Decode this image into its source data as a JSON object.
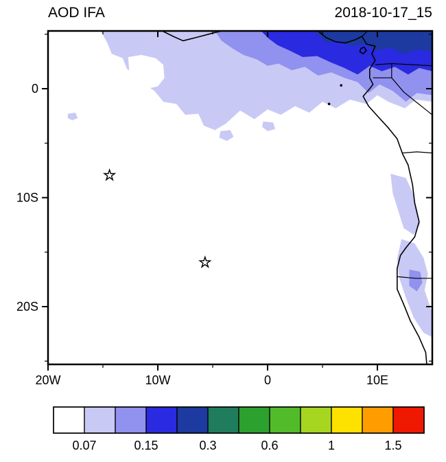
{
  "header": {
    "title": "AOD IFA",
    "date": "2018-10-17_15"
  },
  "chart_data": {
    "type": "heatmap",
    "title": "AOD IFA",
    "timestamp": "2018-10-17_15",
    "projection": {
      "lon_min": -20,
      "lon_max": 15,
      "lat_min": -25.3,
      "lat_max": 5.3
    },
    "axes": {
      "x_ticks": [
        {
          "label": "20W",
          "lon": -20
        },
        {
          "label": "10W",
          "lon": -10
        },
        {
          "label": "0",
          "lon": 0
        },
        {
          "label": "10E",
          "lon": 10
        }
      ],
      "y_ticks": [
        {
          "label": "0",
          "lat": 0
        },
        {
          "label": "10S",
          "lat": -10
        },
        {
          "label": "20S",
          "lat": -20
        }
      ],
      "x_minor_ticks": [
        -15,
        -5,
        5
      ],
      "y_minor_ticks": [
        5,
        -5,
        -15,
        -25
      ]
    },
    "colorbar": {
      "colors": [
        "#ffffff",
        "#c9c9f6",
        "#9191ef",
        "#2a2ae0",
        "#1c3aa0",
        "#1f7d5e",
        "#2da12d",
        "#52bb2a",
        "#a6d620",
        "#ffe100",
        "#ff9d00",
        "#ef1800"
      ],
      "labels": [
        {
          "text": "0.07",
          "boundary": 1
        },
        {
          "text": "0.15",
          "boundary": 3
        },
        {
          "text": "0.3",
          "boundary": 5
        },
        {
          "text": "0.6",
          "boundary": 7
        },
        {
          "text": "1",
          "boundary": 9
        },
        {
          "text": "1.5",
          "boundary": 11
        }
      ]
    },
    "markers": [
      {
        "lon": -14.4,
        "lat": -7.95
      },
      {
        "lon": -5.7,
        "lat": -15.95
      }
    ],
    "aod_regions": [
      {
        "name": "level-1",
        "color_index": 1,
        "polygons": [
          [
            [
              -15.2,
              5.3
            ],
            [
              15,
              5.3
            ],
            [
              15,
              -1.2
            ],
            [
              13.5,
              -1.0
            ],
            [
              12.5,
              -1.8
            ],
            [
              11,
              -1.2
            ],
            [
              10,
              -0.6
            ],
            [
              9,
              -1.4
            ],
            [
              7.5,
              -1.0
            ],
            [
              6.2,
              -1.8
            ],
            [
              5,
              -1.2
            ],
            [
              3.8,
              -2.2
            ],
            [
              2.5,
              -1.6
            ],
            [
              1.2,
              -2.4
            ],
            [
              0,
              -1.9
            ],
            [
              -1.2,
              -2.8
            ],
            [
              -2.5,
              -2.0
            ],
            [
              -3.8,
              -3.2
            ],
            [
              -4.8,
              -3.8
            ],
            [
              -5.8,
              -3.4
            ],
            [
              -6.3,
              -2.3
            ],
            [
              -7.5,
              -2.4
            ],
            [
              -8.3,
              -1.4
            ],
            [
              -9.5,
              -1.2
            ],
            [
              -10.3,
              -0.2
            ],
            [
              -11.2,
              0.4
            ],
            [
              -11.8,
              1.2
            ],
            [
              -12.8,
              1.8
            ],
            [
              -13.2,
              2.8
            ],
            [
              -14.2,
              3.2
            ],
            [
              -14.6,
              4.2
            ]
          ],
          [
            [
              -18.2,
              -2.3
            ],
            [
              -17.5,
              -2.2
            ],
            [
              -17.3,
              -2.7
            ],
            [
              -17.8,
              -2.9
            ],
            [
              -18.2,
              -2.7
            ]
          ],
          [
            [
              -4.3,
              -3.9
            ],
            [
              -3.4,
              -3.8
            ],
            [
              -3.1,
              -4.4
            ],
            [
              -3.7,
              -4.8
            ],
            [
              -4.4,
              -4.5
            ]
          ],
          [
            [
              -0.4,
              -3.0
            ],
            [
              0.5,
              -3.1
            ],
            [
              0.7,
              -3.7
            ],
            [
              0,
              -3.9
            ],
            [
              -0.5,
              -3.5
            ]
          ],
          [
            [
              11.2,
              -7.8
            ],
            [
              12.6,
              -8.2
            ],
            [
              13.2,
              -9.5
            ],
            [
              13.6,
              -11.0
            ],
            [
              13.9,
              -12.4
            ],
            [
              13.3,
              -13.4
            ],
            [
              12.4,
              -12.8
            ],
            [
              11.9,
              -11.2
            ],
            [
              11.4,
              -9.6
            ]
          ],
          [
            [
              12.2,
              -13.8
            ],
            [
              13.4,
              -14.2
            ],
            [
              14.2,
              -15.5
            ],
            [
              14.6,
              -17.0
            ],
            [
              14.3,
              -18.5
            ],
            [
              14.8,
              -20.0
            ],
            [
              15,
              -20.5
            ],
            [
              15,
              -22.8
            ],
            [
              14.2,
              -22.4
            ],
            [
              13.3,
              -21.0
            ],
            [
              12.6,
              -19.2
            ],
            [
              12.0,
              -17.4
            ],
            [
              11.8,
              -15.6
            ]
          ]
        ]
      },
      {
        "name": "clear-notch",
        "color_index": 0,
        "polygons": [
          [
            [
              -12.7,
              2.9
            ],
            [
              -11.5,
              3.1
            ],
            [
              -10.2,
              2.8
            ],
            [
              -9.5,
              2.2
            ],
            [
              -9.4,
              1.0
            ],
            [
              -10.0,
              0.2
            ],
            [
              -11.0,
              0.0
            ],
            [
              -12.0,
              0.6
            ],
            [
              -12.6,
              1.6
            ]
          ]
        ]
      },
      {
        "name": "level-2",
        "color_index": 2,
        "polygons": [
          [
            [
              -4.8,
              5.3
            ],
            [
              15,
              5.3
            ],
            [
              15,
              -0.6
            ],
            [
              13.6,
              -0.4
            ],
            [
              12.6,
              -1.2
            ],
            [
              11.4,
              -0.2
            ],
            [
              10.2,
              0.4
            ],
            [
              9.2,
              -0.4
            ],
            [
              8.2,
              0.6
            ],
            [
              7.0,
              1.0
            ],
            [
              5.8,
              1.5
            ],
            [
              4.6,
              1.2
            ],
            [
              3.4,
              2.0
            ],
            [
              2.2,
              1.7
            ],
            [
              1.0,
              2.3
            ],
            [
              0,
              2.1
            ],
            [
              -1.0,
              2.7
            ],
            [
              -2.2,
              3.1
            ],
            [
              -3.2,
              3.7
            ],
            [
              -4.2,
              4.4
            ]
          ],
          [
            [
              12.9,
              -16.6
            ],
            [
              13.9,
              -16.8
            ],
            [
              14.1,
              -17.8
            ],
            [
              13.6,
              -18.6
            ],
            [
              12.9,
              -18.1
            ]
          ]
        ]
      },
      {
        "name": "level-3",
        "color_index": 3,
        "polygons": [
          [
            [
              -0.6,
              5.3
            ],
            [
              15,
              5.3
            ],
            [
              15,
              1.6
            ],
            [
              13.8,
              1.9
            ],
            [
              12.8,
              1.3
            ],
            [
              11.6,
              2.0
            ],
            [
              10.4,
              1.6
            ],
            [
              9.3,
              2.1
            ],
            [
              8.2,
              1.3
            ],
            [
              7.0,
              1.9
            ],
            [
              5.8,
              2.4
            ],
            [
              4.5,
              3.0
            ],
            [
              3.2,
              2.9
            ],
            [
              2.0,
              3.5
            ],
            [
              0.9,
              4.0
            ],
            [
              0.1,
              4.6
            ]
          ]
        ]
      },
      {
        "name": "level-4",
        "color_index": 4,
        "polygons": [
          [
            [
              4.2,
              5.3
            ],
            [
              15,
              5.3
            ],
            [
              15,
              3.4
            ],
            [
              13.6,
              3.6
            ],
            [
              12.4,
              3.2
            ],
            [
              11.2,
              3.8
            ],
            [
              10.0,
              3.5
            ],
            [
              8.8,
              4.1
            ],
            [
              7.6,
              3.9
            ],
            [
              6.4,
              4.4
            ],
            [
              5.4,
              4.2
            ]
          ]
        ]
      }
    ],
    "coastline": [
      [
        [
          -9.6,
          5.3
        ],
        [
          -8.6,
          4.8
        ],
        [
          -7.7,
          4.4
        ],
        [
          -6.5,
          4.7
        ],
        [
          -5.0,
          5.1
        ],
        [
          -4.2,
          5.3
        ]
      ],
      [
        [
          4.6,
          5.3
        ],
        [
          5.3,
          4.7
        ],
        [
          6.2,
          4.3
        ],
        [
          7.1,
          4.2
        ],
        [
          8.0,
          4.5
        ],
        [
          8.6,
          4.8
        ],
        [
          9.0,
          4.1
        ],
        [
          9.8,
          3.9
        ],
        [
          9.5,
          3.2
        ],
        [
          9.8,
          2.6
        ],
        [
          9.3,
          1.8
        ],
        [
          9.3,
          1.0
        ],
        [
          9.6,
          0.4
        ],
        [
          9.3,
          0.0
        ],
        [
          8.7,
          -0.7
        ],
        [
          9.2,
          -1.6
        ],
        [
          10.0,
          -2.5
        ],
        [
          11.0,
          -3.6
        ],
        [
          11.8,
          -4.6
        ],
        [
          12.3,
          -6.0
        ],
        [
          12.8,
          -7.0
        ],
        [
          13.2,
          -8.8
        ],
        [
          13.4,
          -10.5
        ],
        [
          13.8,
          -12.2
        ],
        [
          13.4,
          -13.6
        ],
        [
          12.6,
          -14.6
        ],
        [
          12.1,
          -15.3
        ],
        [
          11.8,
          -16.5
        ],
        [
          11.8,
          -17.3
        ],
        [
          11.8,
          -18.4
        ],
        [
          12.4,
          -19.8
        ],
        [
          13.0,
          -21.3
        ],
        [
          13.8,
          -22.8
        ],
        [
          14.4,
          -24.2
        ],
        [
          14.5,
          -25.3
        ]
      ],
      [
        [
          8.5,
          3.7
        ],
        [
          8.8,
          3.8
        ],
        [
          9.0,
          3.5
        ],
        [
          8.7,
          3.2
        ],
        [
          8.4,
          3.4
        ],
        [
          8.5,
          3.7
        ]
      ]
    ],
    "islands": [
      {
        "lon": 6.7,
        "lat": 0.3
      },
      {
        "lon": 5.6,
        "lat": -1.4
      }
    ],
    "borders": [
      [
        [
          8.6,
          4.8
        ],
        [
          9.1,
          5.3
        ]
      ],
      [
        [
          9.8,
          2.2
        ],
        [
          11.3,
          2.3
        ],
        [
          13.2,
          2.2
        ],
        [
          15,
          2.1
        ]
      ],
      [
        [
          11.3,
          2.3
        ],
        [
          11.3,
          1.0
        ]
      ],
      [
        [
          9.6,
          1.0
        ],
        [
          11.3,
          1.0
        ]
      ],
      [
        [
          11.3,
          1.0
        ],
        [
          12.4,
          -0.3
        ],
        [
          13.5,
          -1.2
        ],
        [
          14.5,
          -2.0
        ],
        [
          15,
          -2.4
        ]
      ],
      [
        [
          12.3,
          -5.9
        ],
        [
          13.6,
          -5.8
        ],
        [
          15,
          -5.9
        ]
      ],
      [
        [
          11.8,
          -17.25
        ],
        [
          13.5,
          -17.4
        ],
        [
          15,
          -17.4
        ]
      ]
    ]
  }
}
